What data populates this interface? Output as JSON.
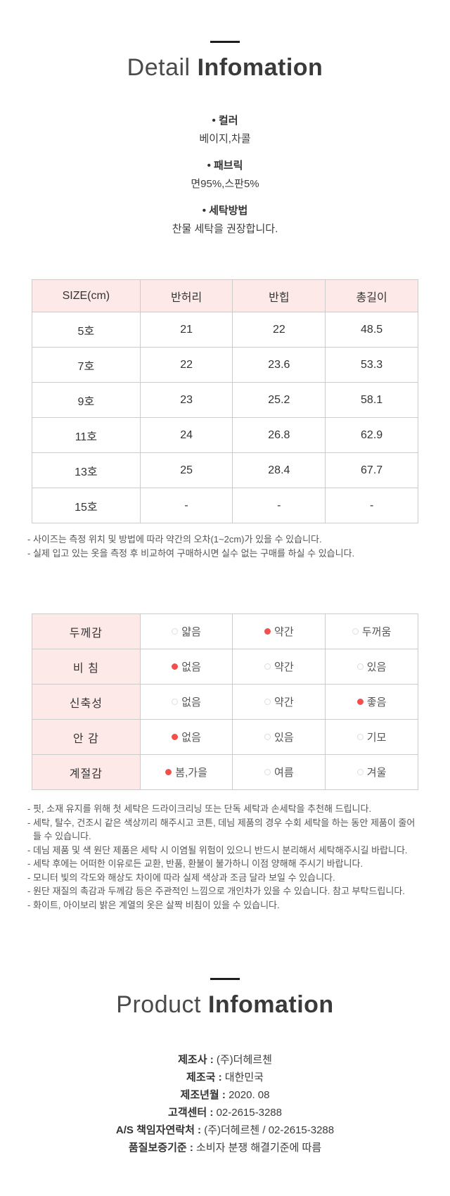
{
  "detail_section": {
    "title_light": "Detail",
    "title_bold": "Infomation",
    "specs": [
      {
        "label": "• 컬러",
        "value": "베이지,차콜"
      },
      {
        "label": "• 패브릭",
        "value": "면95%,스판5%"
      },
      {
        "label": "• 세탁방법",
        "value": "찬물 세탁을 권장합니다."
      }
    ]
  },
  "size_table": {
    "headers": [
      "SIZE(cm)",
      "반허리",
      "반힙",
      "총길이"
    ],
    "rows": [
      [
        "5호",
        "21",
        "22",
        "48.5"
      ],
      [
        "7호",
        "22",
        "23.6",
        "53.3"
      ],
      [
        "9호",
        "23",
        "25.2",
        "58.1"
      ],
      [
        "11호",
        "24",
        "26.8",
        "62.9"
      ],
      [
        "13호",
        "25",
        "28.4",
        "67.7"
      ],
      [
        "15호",
        "-",
        "-",
        "-"
      ]
    ],
    "notes": [
      "- 사이즈는 측정 위치 및 방법에 따라 약간의 오차(1~2cm)가 있을 수 있습니다.",
      "- 실제 입고 있는 옷을 측정 후 비교하여 구매하시면 실수 없는 구매를 하실 수 있습니다."
    ]
  },
  "feature_table": {
    "rows": [
      {
        "label": "두께감",
        "options": [
          {
            "text": "얇음",
            "selected": false
          },
          {
            "text": "약간",
            "selected": true
          },
          {
            "text": "두꺼움",
            "selected": false
          }
        ]
      },
      {
        "label": "비  침",
        "options": [
          {
            "text": "없음",
            "selected": true
          },
          {
            "text": "약간",
            "selected": false
          },
          {
            "text": "있음",
            "selected": false
          }
        ]
      },
      {
        "label": "신축성",
        "options": [
          {
            "text": "없음",
            "selected": false
          },
          {
            "text": "약간",
            "selected": false
          },
          {
            "text": "좋음",
            "selected": true
          }
        ]
      },
      {
        "label": "안  감",
        "options": [
          {
            "text": "없음",
            "selected": true
          },
          {
            "text": "있음",
            "selected": false
          },
          {
            "text": "기모",
            "selected": false
          }
        ]
      },
      {
        "label": "계절감",
        "options": [
          {
            "text": "봄,가을",
            "selected": true
          },
          {
            "text": "여름",
            "selected": false
          },
          {
            "text": "겨울",
            "selected": false
          }
        ]
      }
    ]
  },
  "care_notes": [
    "- 핏, 소재 유지를 위해 첫 세탁은 드라이크리닝 또는 단독 세탁과 손세탁을 추천해 드립니다.",
    "- 세탁, 탈수, 건조시 같은 색상끼리 해주시고 코튼, 데님 제품의 경우 수회 세탁을 하는 동안 제품이 줄어들 수 있습니다.",
    "- 데님 제품 및 색 원단 제품은 세탁 시 이염될 위험이 있으니 반드시 분리해서 세탁해주시길 바랍니다.",
    "- 세탁 후에는 어떠한 이유로든 교환, 반품, 환불이 불가하니 이점 양해해 주시기 바랍니다.",
    "- 모니터 빛의 각도와 해상도 차이에 따라 실제 색상과 조금 달라 보일 수 있습니다.",
    "- 원단 재질의 촉감과 두께감 등은 주관적인 느낌으로 개인차가 있을 수 있습니다. 참고 부탁드립니다.",
    "- 화이트, 아이보리 밝은 계열의 옷은 살짝 비침이 있을 수 있습니다."
  ],
  "product_section": {
    "title_light": "Product",
    "title_bold": "Infomation",
    "items": [
      {
        "label": "제조사 :",
        "value": "(주)더헤르첸"
      },
      {
        "label": "제조국 :",
        "value": "대한민국"
      },
      {
        "label": "제조년월 :",
        "value": "2020. 08"
      },
      {
        "label": "고객센터 :",
        "value": "02-2615-3288"
      },
      {
        "label": "A/S 책임자연락처 :",
        "value": "(주)더헤르첸 / 02-2615-3288"
      },
      {
        "label": "품질보증기준 :",
        "value": "소비자 분쟁 해결기준에 따름"
      }
    ]
  },
  "colors": {
    "header_pink": "#fdeae8",
    "selected_dot_red": "#f0504e",
    "title_dark": "#3a3a3a"
  }
}
